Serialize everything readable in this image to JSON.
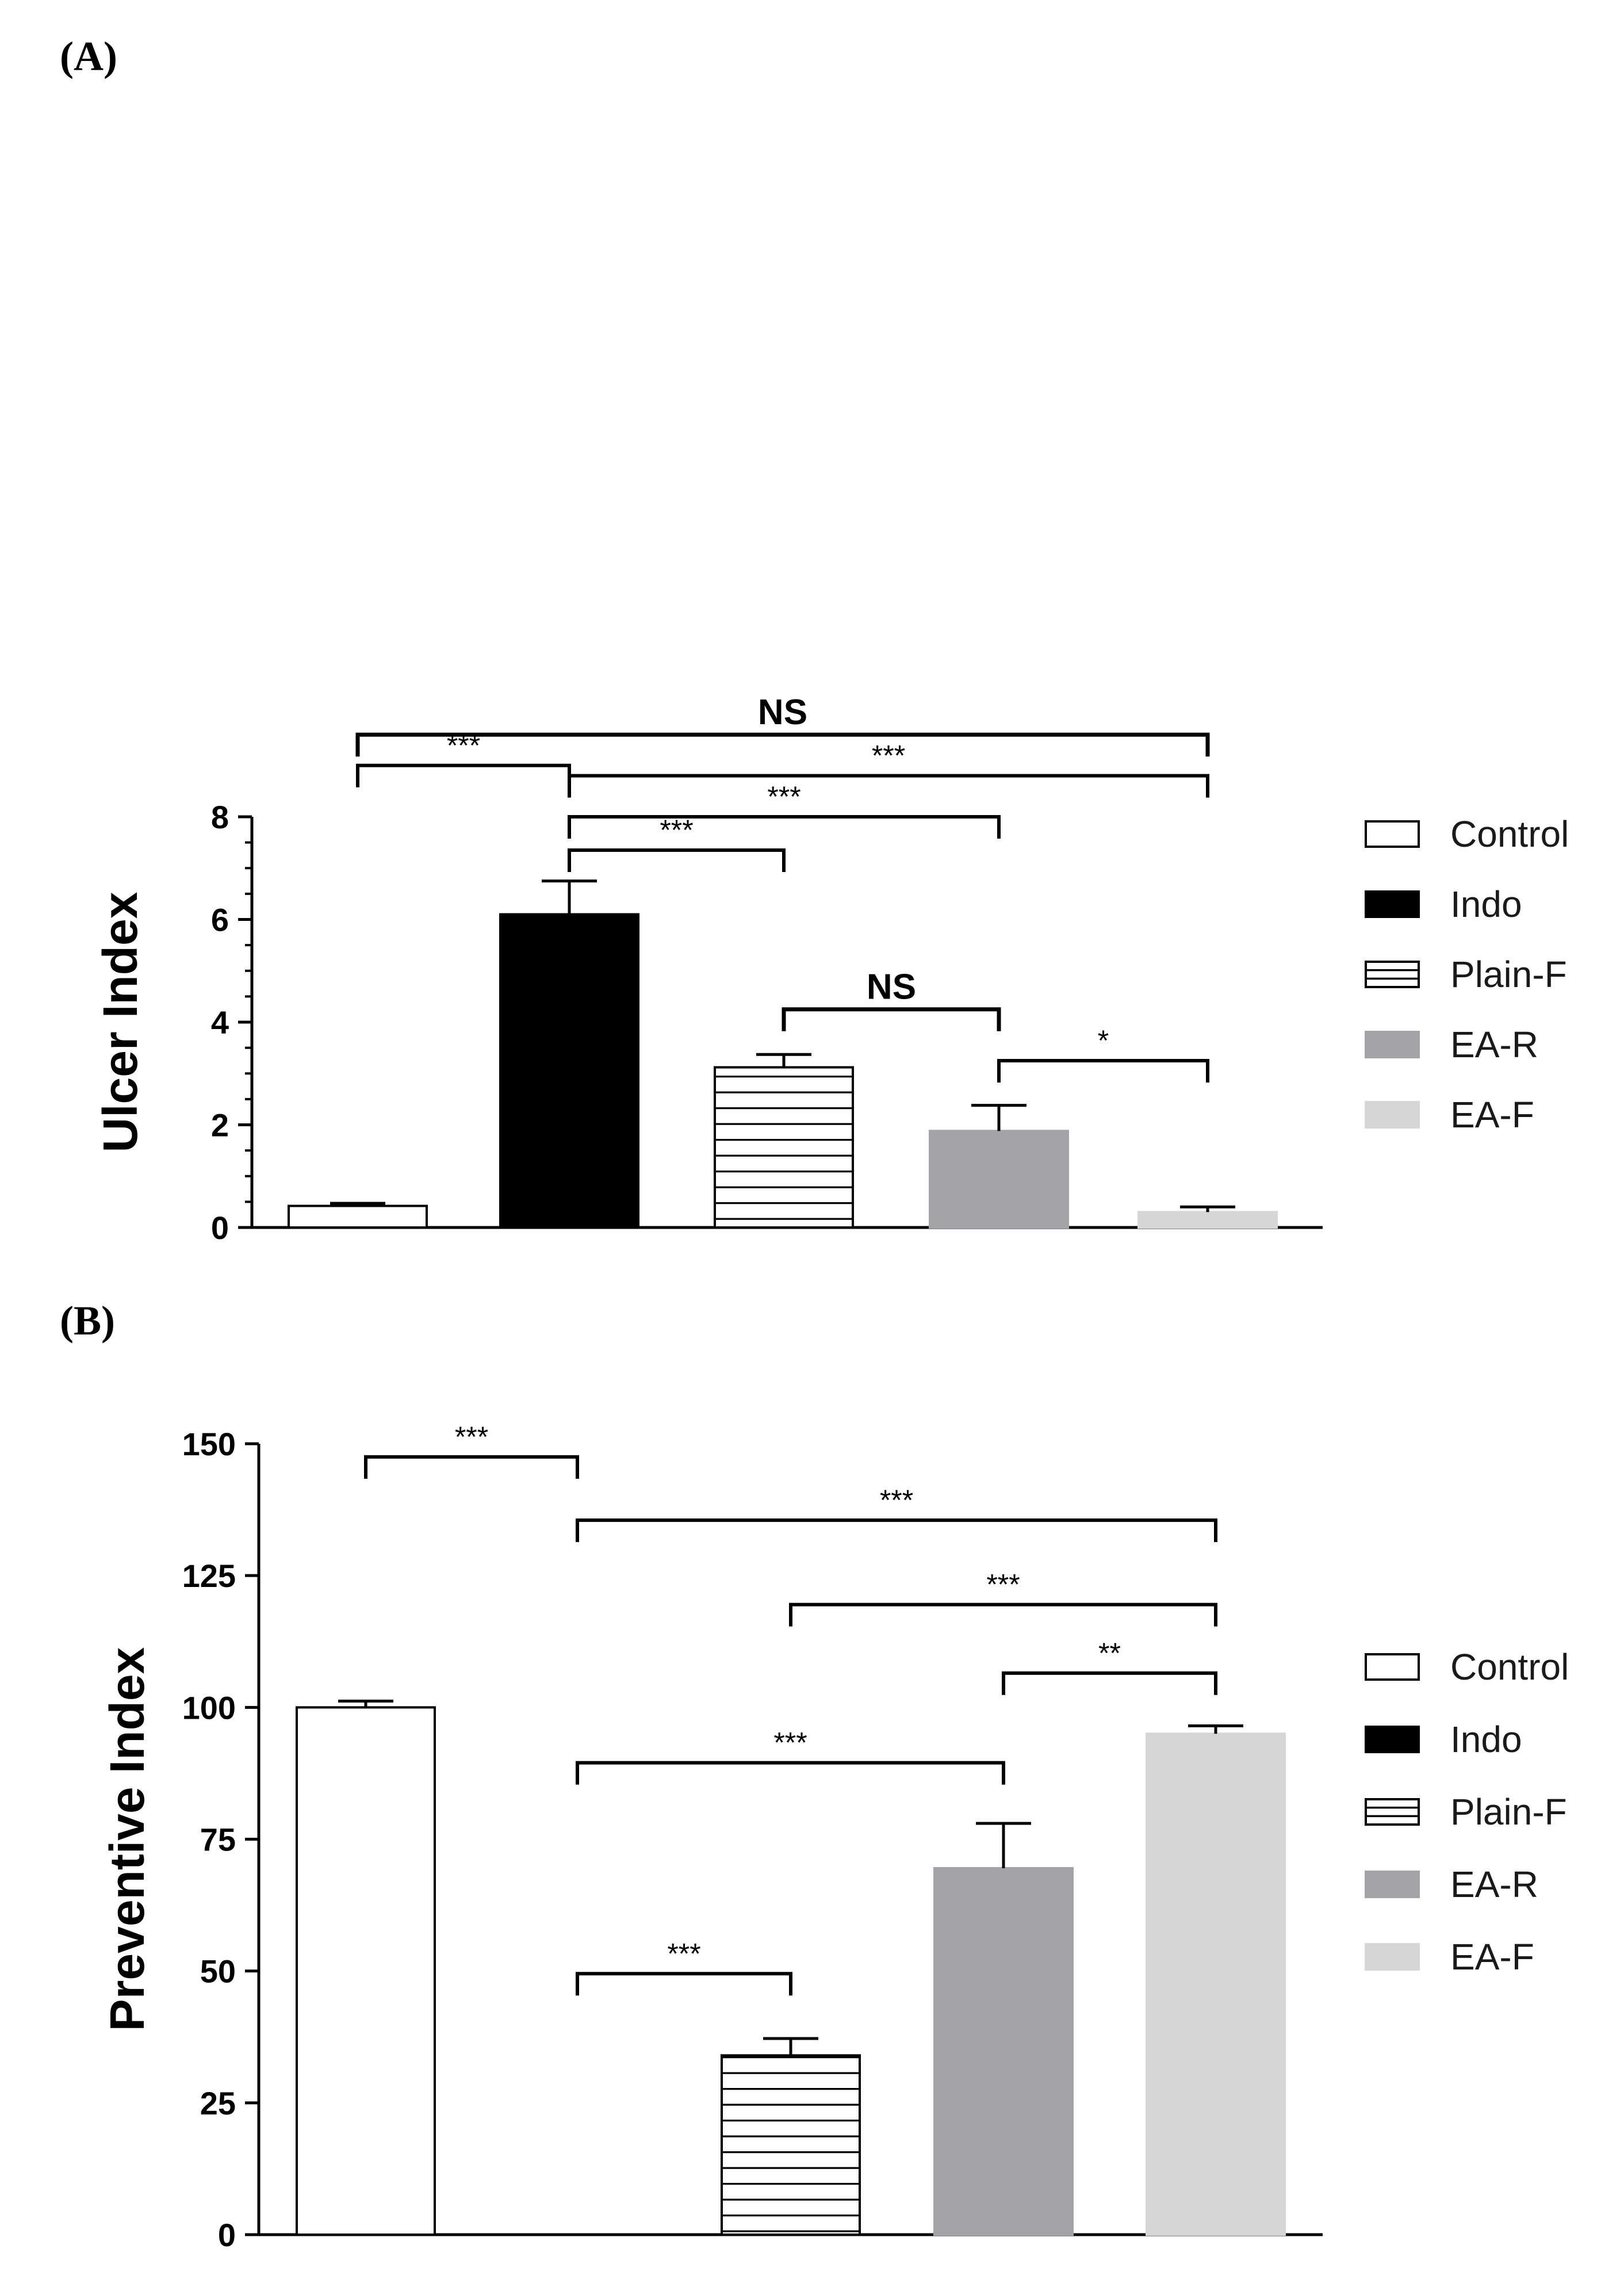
{
  "patterns": {
    "hatch_line_color": "#000000"
  },
  "chart_data": [
    {
      "panel_label": "(A)",
      "type": "bar",
      "categories": [
        "Control",
        "Indo",
        "Plain-F",
        "EA-R",
        "EA-F"
      ],
      "values": [
        0.42,
        6.1,
        3.12,
        1.88,
        0.3
      ],
      "errors": [
        0.05,
        0.65,
        0.25,
        0.5,
        0.1
      ],
      "ylabel": "Ulcer Index",
      "ylim": [
        0,
        8
      ],
      "yticks": [
        0,
        2,
        4,
        6,
        8
      ],
      "minor_tick_step": 0.5,
      "grid": false,
      "legend": {
        "placement": "right",
        "entries": [
          "Control",
          "Indo",
          "Plain-F",
          "EA-R",
          "EA-F"
        ]
      },
      "series_style": [
        {
          "fill": "#ffffff",
          "stroke": "#000000",
          "pattern": "none"
        },
        {
          "fill": "#000000",
          "stroke": "#000000",
          "pattern": "none"
        },
        {
          "fill": "#ffffff",
          "stroke": "#000000",
          "pattern": "horizontal-lines"
        },
        {
          "fill": "#a3a3a8",
          "stroke": "#a3a3a8",
          "pattern": "none"
        },
        {
          "fill": "#d6d6d6",
          "stroke": "#d6d6d6",
          "pattern": "none"
        }
      ],
      "annotations": [
        {
          "from": 0,
          "to": 4,
          "label": "NS",
          "bold": true,
          "level": 9.6
        },
        {
          "from": 0,
          "to": 1,
          "label": "***",
          "bold": false,
          "level": 9.0
        },
        {
          "from": 1,
          "to": 4,
          "label": "***",
          "bold": false,
          "level": 8.8
        },
        {
          "from": 1,
          "to": 3,
          "label": "***",
          "bold": false,
          "level": 8.0
        },
        {
          "from": 1,
          "to": 2,
          "label": "***",
          "bold": false,
          "level": 7.35
        },
        {
          "from": 2,
          "to": 3,
          "label": "NS",
          "bold": true,
          "level": 4.25
        },
        {
          "from": 3,
          "to": 4,
          "label": "*",
          "bold": false,
          "level": 3.25
        }
      ]
    },
    {
      "panel_label": "(B)",
      "type": "bar",
      "categories": [
        "Control",
        "Indo",
        "Plain-F",
        "EA-R",
        "EA-F"
      ],
      "values": [
        100,
        0,
        34,
        69.5,
        95
      ],
      "errors": [
        1.2,
        0,
        3.2,
        8.5,
        1.5
      ],
      "ylabel": "Preventive Index",
      "ylim": [
        0,
        150
      ],
      "yticks": [
        0,
        25,
        50,
        75,
        100,
        125,
        150
      ],
      "minor_tick_step": null,
      "grid": false,
      "legend": {
        "placement": "right",
        "entries": [
          "Control",
          "Indo",
          "Plain-F",
          "EA-R",
          "EA-F"
        ]
      },
      "series_style": [
        {
          "fill": "#ffffff",
          "stroke": "#000000",
          "pattern": "none"
        },
        {
          "fill": "#000000",
          "stroke": "#000000",
          "pattern": "none"
        },
        {
          "fill": "#ffffff",
          "stroke": "#000000",
          "pattern": "horizontal-lines"
        },
        {
          "fill": "#a3a3a8",
          "stroke": "#a3a3a8",
          "pattern": "none"
        },
        {
          "fill": "#d6d6d6",
          "stroke": "#d6d6d6",
          "pattern": "none"
        }
      ],
      "annotations": [
        {
          "from": 0,
          "to": 1,
          "label": "***",
          "bold": false,
          "level": 147.5
        },
        {
          "from": 1,
          "to": 4,
          "label": "***",
          "bold": false,
          "level": 135.5
        },
        {
          "from": 2,
          "to": 4,
          "label": "***",
          "bold": false,
          "level": 119.5
        },
        {
          "from": 3,
          "to": 4,
          "label": "**",
          "bold": false,
          "level": 106.5
        },
        {
          "from": 1,
          "to": 3,
          "label": "***",
          "bold": false,
          "level": 89.5
        },
        {
          "from": 1,
          "to": 2,
          "label": "***",
          "bold": false,
          "level": 49.5
        }
      ]
    }
  ]
}
